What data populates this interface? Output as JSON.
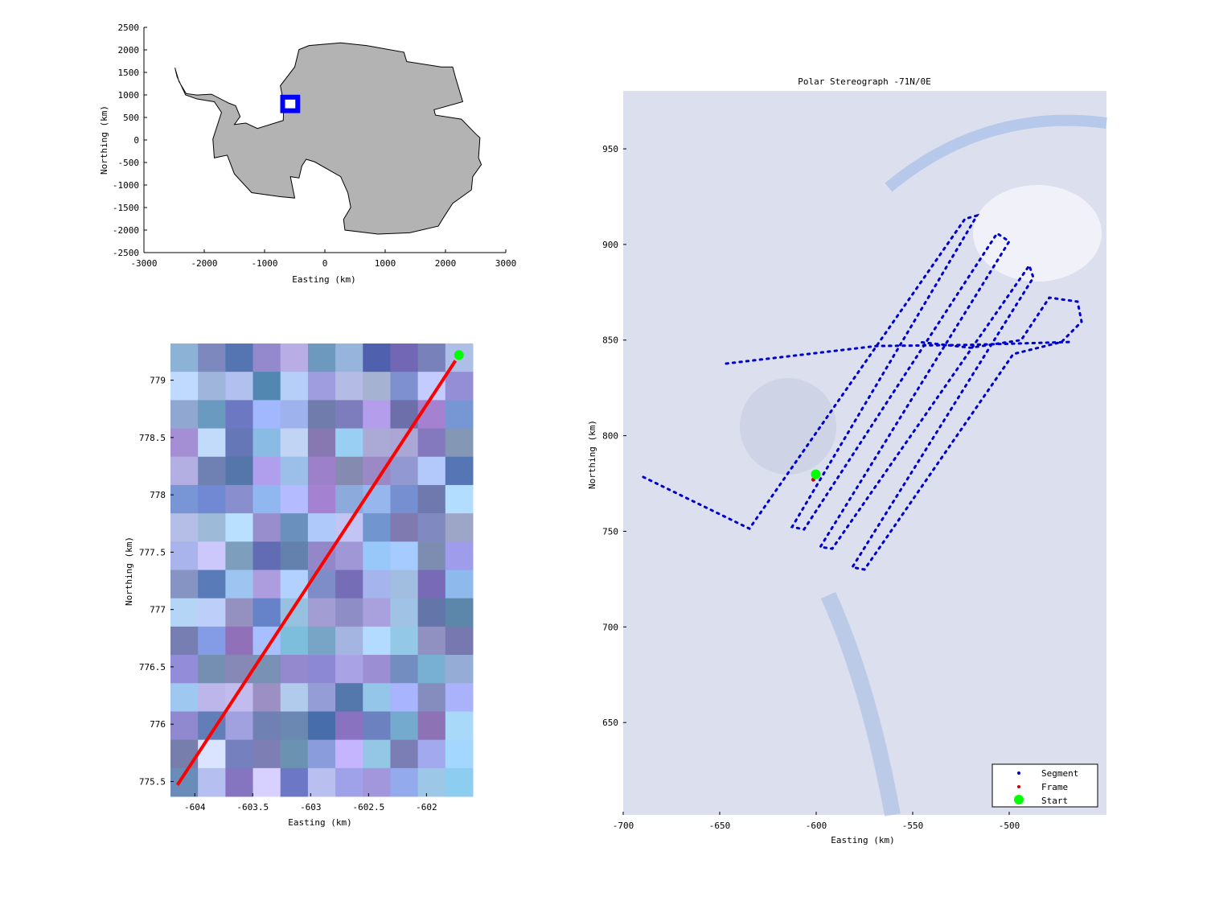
{
  "chart_data": [
    {
      "type": "line",
      "title": "",
      "xlabel": "Easting (km)",
      "ylabel": "Northing (km)",
      "xlim": [
        -3000,
        3000
      ],
      "ylim": [
        -2500,
        2500
      ],
      "xticks": [
        -3000,
        -2000,
        -1000,
        0,
        1000,
        2000,
        3000
      ],
      "yticks": [
        2500,
        2000,
        1500,
        1000,
        500,
        0,
        -500,
        -1000,
        -1500,
        -2000,
        -2500
      ],
      "grid": false,
      "continent_color": "#b3b3b3",
      "coastline": {
        "x": [
          -2486,
          -2420,
          -2300,
          -2119,
          -1881,
          -1595,
          -1480,
          -1405,
          -1500,
          -1310,
          -1119,
          -690,
          -681,
          -738,
          -500,
          -429,
          -262,
          262,
          690,
          1310,
          1357,
          1929,
          2119,
          2167,
          2286,
          1810,
          1833,
          2262,
          2500,
          2571,
          2548,
          2595,
          2452,
          2429,
          2119,
          1976,
          1881,
          1405,
          881,
          333,
          310,
          429,
          381,
          262,
          -167,
          -310,
          -381,
          -429,
          -571,
          -500,
          -738,
          -1214,
          -1500,
          -1619,
          -1833,
          -1857,
          -1786,
          -1714,
          -1833,
          -2119,
          -2310,
          -2450
        ],
        "y": [
          1603,
          1300,
          1030,
          998,
          1016,
          819,
          760,
          520,
          344,
          374,
          255,
          433,
          790,
          1205,
          1621,
          2007,
          2096,
          2156,
          2096,
          1948,
          1740,
          1621,
          1621,
          1384,
          849,
          671,
          552,
          463,
          137,
          48,
          -398,
          -546,
          -814,
          -1110,
          -1407,
          -1704,
          -1912,
          -2061,
          -2090,
          -2001,
          -1764,
          -1496,
          -1170,
          -814,
          -487,
          -428,
          -576,
          -843,
          -814,
          -1289,
          -1259,
          -1170,
          -754,
          -338,
          -398,
          18,
          315,
          612,
          849,
          910,
          1000,
          1400
        ]
      },
      "region_box": {
        "x": [
          -700,
          -450
        ],
        "y": [
          650,
          950
        ],
        "color": "#0000ff"
      }
    },
    {
      "type": "line",
      "title": "",
      "xlabel": "Easting (km)",
      "ylabel": "Northing (km)",
      "xlim": [
        -604.21,
        -601.6
      ],
      "ylim": [
        775.37,
        779.32
      ],
      "xticks": [
        -604,
        -603.5,
        -603,
        -602.5,
        -602
      ],
      "xticklabels": [
        "-604",
        "-603.5",
        "-603",
        "-602.5",
        "-602"
      ],
      "yticks": [
        779,
        778.5,
        778,
        777.5,
        777,
        776.5,
        776,
        775.5
      ],
      "yticklabels": [
        "779",
        "778.5",
        "778",
        "777.5",
        "777",
        "776.5",
        "776",
        "775.5"
      ],
      "grid": false,
      "frame_line": {
        "x": [
          -604.15,
          -601.75
        ],
        "y": [
          775.47,
          779.17
        ],
        "color": "#ff0000"
      },
      "start": {
        "x": -601.72,
        "y": 779.22,
        "color": "#00ff00"
      }
    },
    {
      "type": "scatter",
      "title": "Polar Stereograph -71N/0E",
      "xlabel": "Easting (km)",
      "ylabel": "Northing (km)",
      "xlim": [
        -700,
        -449.6
      ],
      "ylim": [
        601.7,
        980.3
      ],
      "xticks": [
        -700,
        -650,
        -600,
        -550,
        -500
      ],
      "xticklabels": [
        "-700",
        "-650",
        "-600",
        "-550",
        "-500"
      ],
      "yticks": [
        950,
        900,
        850,
        800,
        750,
        700,
        650
      ],
      "yticklabels": [
        "950",
        "900",
        "850",
        "800",
        "750",
        "700",
        "650"
      ],
      "grid": false,
      "legend_position": "bottom-right",
      "series": [
        {
          "name": "Segment",
          "color": "#0000cc",
          "x": [
            -689.6,
            -634.6,
            -522.9,
            -516.7,
            -612.5,
            -606.3,
            -506.3,
            -500,
            -597.9,
            -591.7,
            -489.6,
            -487.5,
            -581.3,
            -575,
            -497.9,
            -472.9,
            -462.5,
            -464.6,
            -479.2,
            -493.8,
            -520,
            -546.7
          ],
          "y": [
            778.4,
            751.4,
            913.4,
            915.1,
            752.3,
            751.0,
            905.8,
            901.6,
            741.8,
            740.9,
            889.0,
            882.7,
            731.2,
            730,
            842.7,
            849,
            859.6,
            870.1,
            872.2,
            850,
            846,
            849
          ]
        },
        {
          "name": "Segment",
          "color": "#0000cc",
          "x": [
            -646.7,
            -568.8,
            -520,
            -468.8
          ],
          "y": [
            837.7,
            846.9,
            847.5,
            849.0
          ]
        },
        {
          "name": "Frame",
          "color": "#cc0000",
          "x": [
            -601.5
          ],
          "y": [
            777
          ]
        },
        {
          "name": "Start",
          "color": "#00ff00",
          "x": [
            -600.2
          ],
          "y": [
            779.8
          ]
        }
      ],
      "legend": [
        {
          "label": "Segment",
          "color": "#0000cc",
          "marker": "dot"
        },
        {
          "label": "Frame",
          "color": "#cc0000",
          "marker": "dot"
        },
        {
          "label": "Start",
          "color": "#00ff00",
          "marker": "big-dot"
        }
      ],
      "background_color": "#dcdfee"
    }
  ]
}
